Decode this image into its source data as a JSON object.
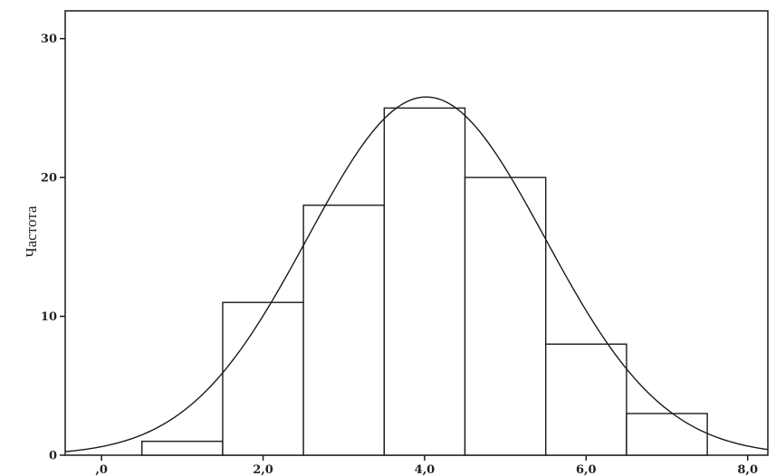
{
  "chart_data": {
    "type": "bar",
    "subtype": "histogram",
    "title": "",
    "xlabel": "",
    "ylabel": "Частота",
    "bins": [
      {
        "x_start": 0.5,
        "x_end": 1.5,
        "value": 1
      },
      {
        "x_start": 1.5,
        "x_end": 2.5,
        "value": 11
      },
      {
        "x_start": 2.5,
        "x_end": 3.5,
        "value": 18
      },
      {
        "x_start": 3.5,
        "x_end": 4.5,
        "value": 25
      },
      {
        "x_start": 4.5,
        "x_end": 5.5,
        "value": 20
      },
      {
        "x_start": 5.5,
        "x_end": 6.5,
        "value": 8
      },
      {
        "x_start": 6.5,
        "x_end": 7.5,
        "value": 3
      }
    ],
    "normal_curve": {
      "mean": 4.02,
      "sd": 1.47,
      "peak": 25.8
    },
    "xlim": [
      -0.45,
      8.25
    ],
    "ylim": [
      0,
      32
    ],
    "x_ticks": [
      0,
      2,
      4,
      6,
      8
    ],
    "x_tick_labels": [
      ",0",
      "2,0",
      "4,0",
      "6,0",
      "8,0"
    ],
    "y_ticks": [
      0,
      10,
      20,
      30
    ],
    "y_tick_labels": [
      "0",
      "10",
      "20",
      "30"
    ],
    "grid": false,
    "legend": "none",
    "colors": {
      "bar_fill": "#ffffff",
      "bar_stroke": "#1a1a1a",
      "curve": "#1a1a1a",
      "axis": "#1a1a1a"
    }
  }
}
